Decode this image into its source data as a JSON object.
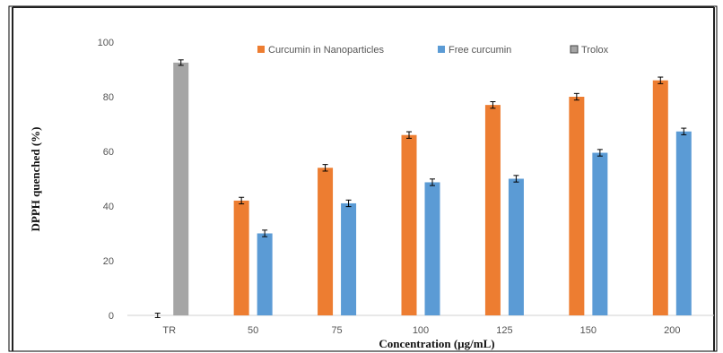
{
  "chart_data": {
    "type": "bar",
    "title": "",
    "xlabel": "Concentration  (µg/mL)",
    "ylabel": "DPPH quenched  (%)",
    "ylim": [
      0,
      100
    ],
    "yticks": [
      0,
      20,
      40,
      60,
      80,
      100
    ],
    "grid": false,
    "legend_position": "top",
    "categories": [
      "TR",
      "50",
      "75",
      "100",
      "125",
      "150",
      "200"
    ],
    "series": [
      {
        "name": "Curcumin in Nanoparticles",
        "color": "#ED7D31",
        "values": [
          0,
          42,
          54,
          66,
          77,
          80,
          86
        ],
        "errors": [
          0.8,
          1.2,
          1.2,
          1.2,
          1.2,
          1.2,
          1.2
        ]
      },
      {
        "name": "Free curcumin",
        "color": "#5B9BD5",
        "values": [
          null,
          30,
          41,
          48.7,
          50,
          59.5,
          67.3
        ],
        "errors": [
          null,
          1.2,
          1.2,
          1.2,
          1.2,
          1.2,
          1.2
        ]
      },
      {
        "name": "Trolox",
        "color": "#A5A5A5",
        "values": [
          92.5,
          null,
          null,
          null,
          null,
          null,
          null
        ],
        "errors": [
          1.0,
          null,
          null,
          null,
          null,
          null,
          null
        ]
      }
    ]
  }
}
